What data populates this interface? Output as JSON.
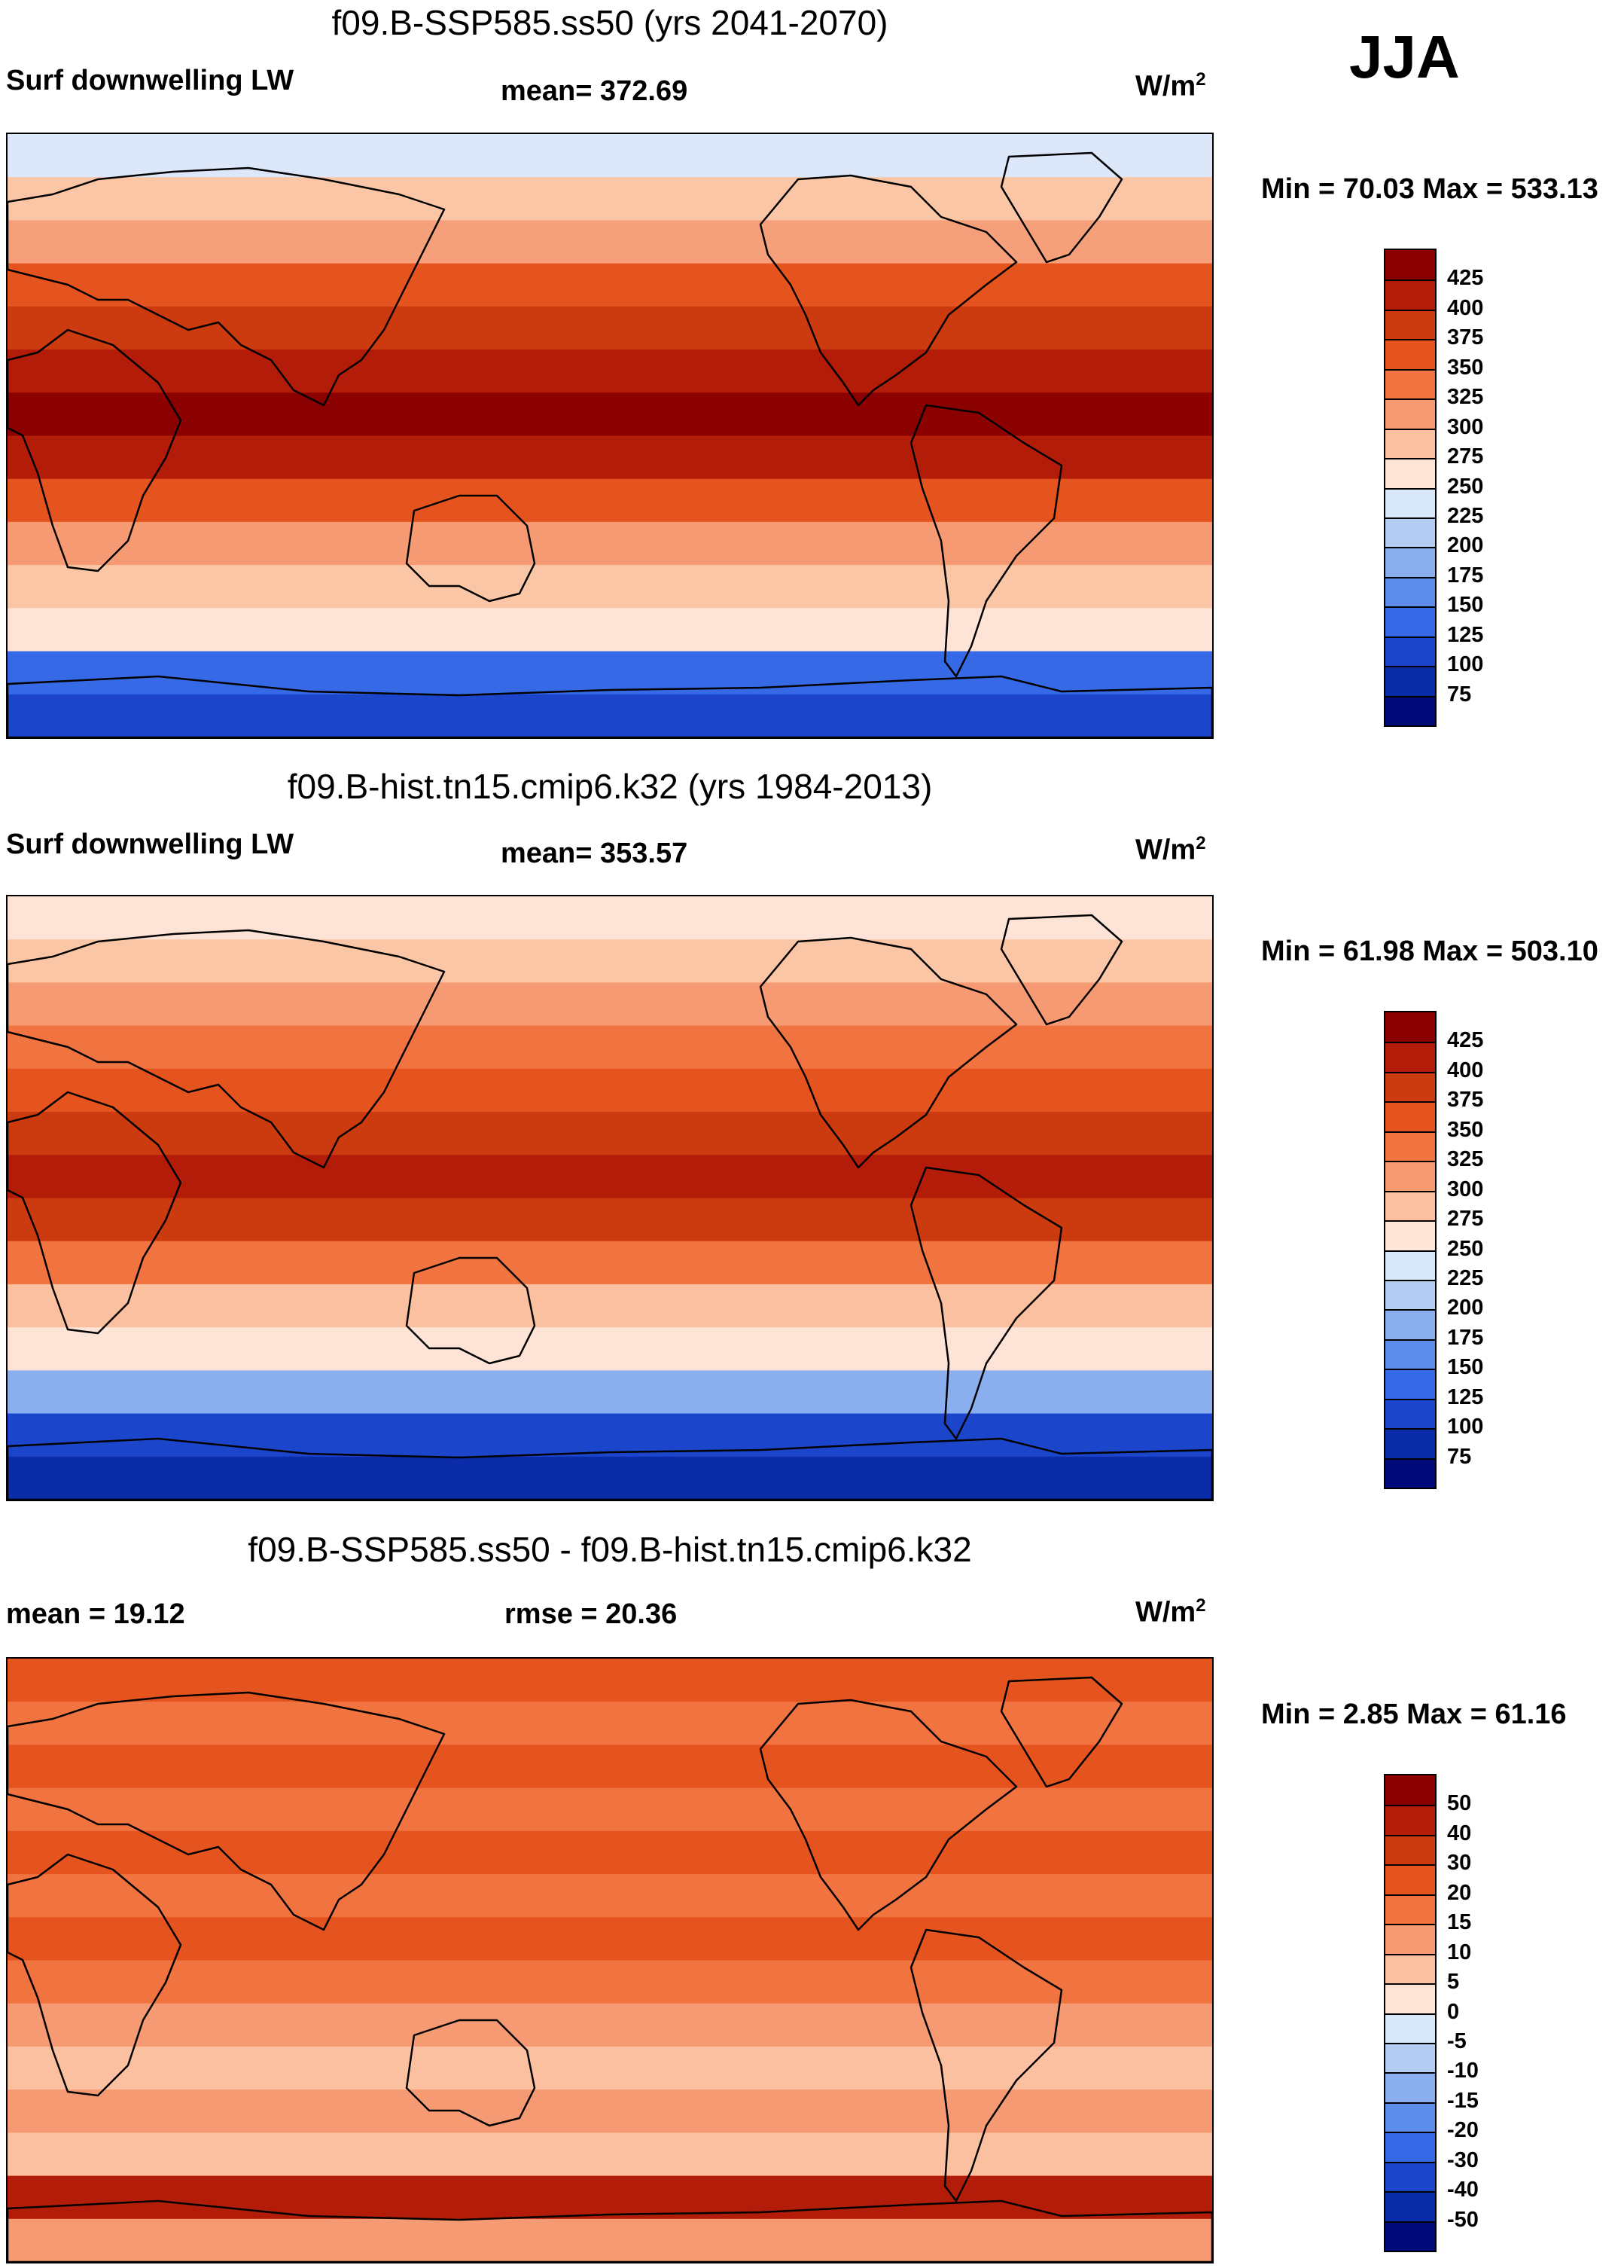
{
  "season": "JJA",
  "panels": [
    {
      "title": "f09.B-SSP585.ss50 (yrs 2041-2070)",
      "left_label": "Surf downwelling LW",
      "center_label": "mean= 372.69",
      "units": "W/m",
      "units_exp": "2",
      "minmax": "Min =  70.03 Max = 533.13",
      "levels": [
        "425",
        "400",
        "375",
        "350",
        "325",
        "300",
        "275",
        "250",
        "225",
        "200",
        "175",
        "150",
        "125",
        "100",
        "75"
      ],
      "colors": [
        "#8b0000",
        "#b31c08",
        "#cc3a0f",
        "#e5531f",
        "#f17340",
        "#f59a72",
        "#fbc0a0",
        "#fde4d6",
        "#d8e8f8",
        "#b3cdf2",
        "#8aaeee",
        "#5d8cea",
        "#3569e6",
        "#1b46cc",
        "#0a2ca8",
        "#000a78"
      ],
      "zones": [
        "#dde7fa",
        "#fbc6a6",
        "#f5a07a",
        "#e5531f",
        "#cc3a0f",
        "#b31c08",
        "#8b0000",
        "#b31c08",
        "#e5531f",
        "#f59a72",
        "#fbc6a6",
        "#fde4d6",
        "#3569e6",
        "#1b46cc"
      ]
    },
    {
      "title": "f09.B-hist.tn15.cmip6.k32 (yrs 1984-2013)",
      "left_label": "Surf downwelling LW",
      "center_label": "mean= 353.57",
      "units": "W/m",
      "units_exp": "2",
      "minmax": "Min =  61.98 Max = 503.10",
      "levels": [
        "425",
        "400",
        "375",
        "350",
        "325",
        "300",
        "275",
        "250",
        "225",
        "200",
        "175",
        "150",
        "125",
        "100",
        "75"
      ],
      "colors": [
        "#8b0000",
        "#b31c08",
        "#cc3a0f",
        "#e5531f",
        "#f17340",
        "#f59a72",
        "#fbc0a0",
        "#fde4d6",
        "#d8e8f8",
        "#b3cdf2",
        "#8aaeee",
        "#5d8cea",
        "#3569e6",
        "#1b46cc",
        "#0a2ca8",
        "#000a78"
      ],
      "zones": [
        "#fde4d6",
        "#fbc6a6",
        "#f59a72",
        "#f17340",
        "#e5531f",
        "#cc3a0f",
        "#b31c08",
        "#cc3a0f",
        "#f17340",
        "#fbc0a0",
        "#fde4d6",
        "#8aaeee",
        "#1b46cc",
        "#0a2ca8"
      ]
    },
    {
      "title": "f09.B-SSP585.ss50 - f09.B-hist.tn15.cmip6.k32",
      "left_label": "mean =  19.12",
      "center_label": "rmse =  20.36",
      "units": "W/m",
      "units_exp": "2",
      "minmax": "Min =   2.85 Max =  61.16",
      "levels": [
        "50",
        "40",
        "30",
        "20",
        "15",
        "10",
        "5",
        "0",
        "-5",
        "-10",
        "-15",
        "-20",
        "-30",
        "-40",
        "-50"
      ],
      "colors": [
        "#8b0000",
        "#b31c08",
        "#cc3a0f",
        "#e5531f",
        "#f17340",
        "#f59a72",
        "#fbc0a0",
        "#fde4d6",
        "#d8e8f8",
        "#b3cdf2",
        "#8aaeee",
        "#5d8cea",
        "#3569e6",
        "#1b46cc",
        "#0a2ca8",
        "#000a78"
      ],
      "zones": [
        "#e5531f",
        "#f17340",
        "#e5531f",
        "#f17340",
        "#e5531f",
        "#f17340",
        "#e5531f",
        "#f17340",
        "#f59a72",
        "#fbc0a0",
        "#f59a72",
        "#fbc0a0",
        "#b31c08",
        "#f59a72"
      ]
    }
  ]
}
